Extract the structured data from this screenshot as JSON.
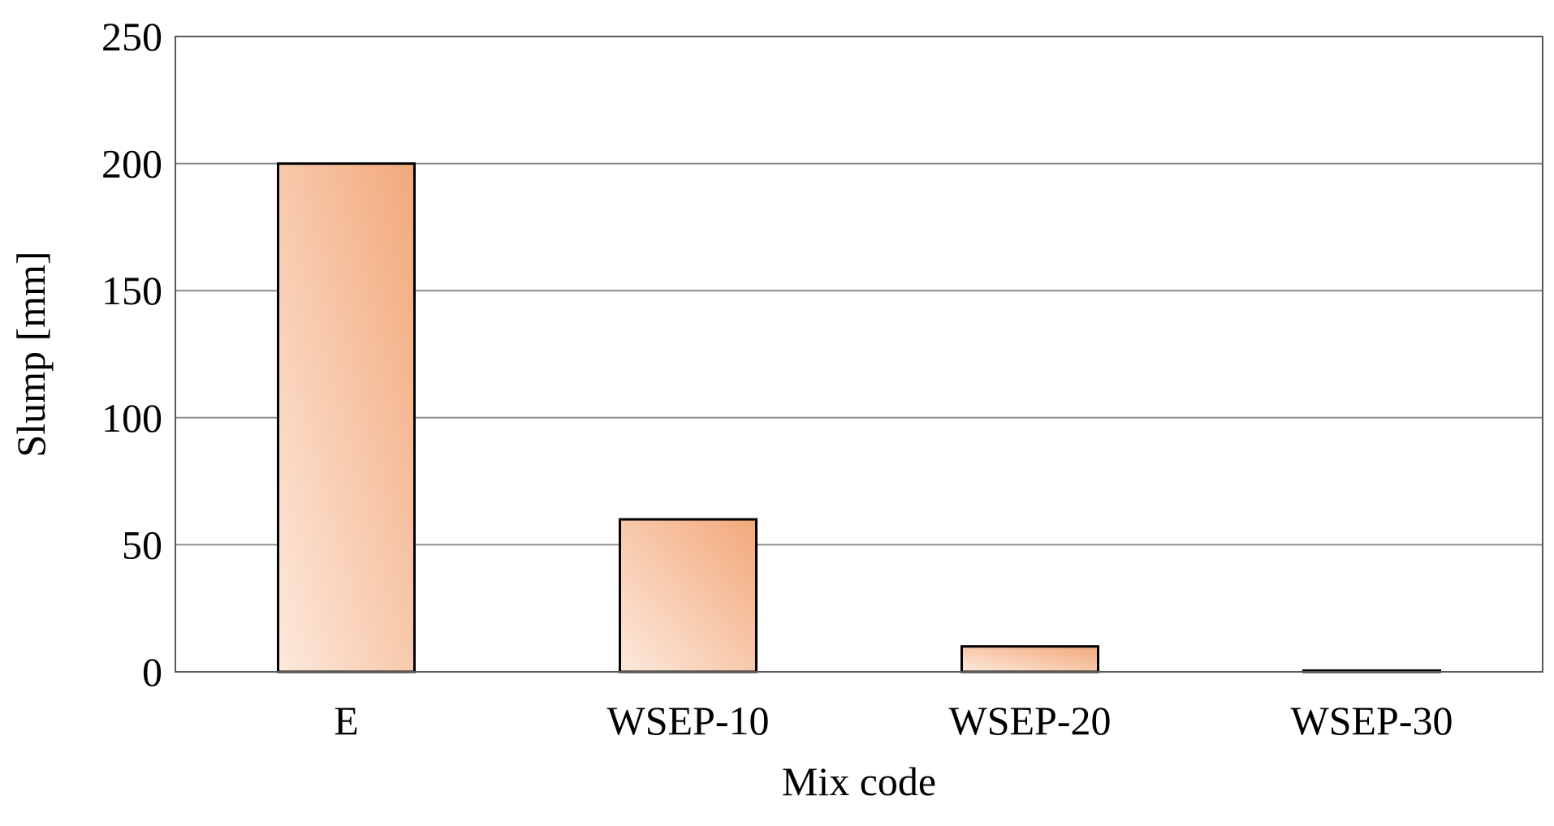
{
  "chart_data": {
    "type": "bar",
    "title": "",
    "xlabel": "Mix code",
    "ylabel": "Slump [mm]",
    "categories": [
      "E",
      "WSEP-10",
      "WSEP-20",
      "WSEP-30"
    ],
    "values": [
      200,
      60,
      10,
      0.5
    ],
    "ylim": [
      0,
      250
    ],
    "yticks": [
      0,
      50,
      100,
      150,
      200,
      250
    ],
    "ytick_labels": [
      "0",
      "50",
      "100",
      "150",
      "200",
      "250"
    ],
    "grid": true,
    "legend": "none",
    "colors": {
      "bar_light": "#fde9dc",
      "bar_dark": "#f2a87a",
      "bar_stroke": "#000000",
      "grid": "#8c8c8c",
      "frame": "#595959"
    }
  }
}
